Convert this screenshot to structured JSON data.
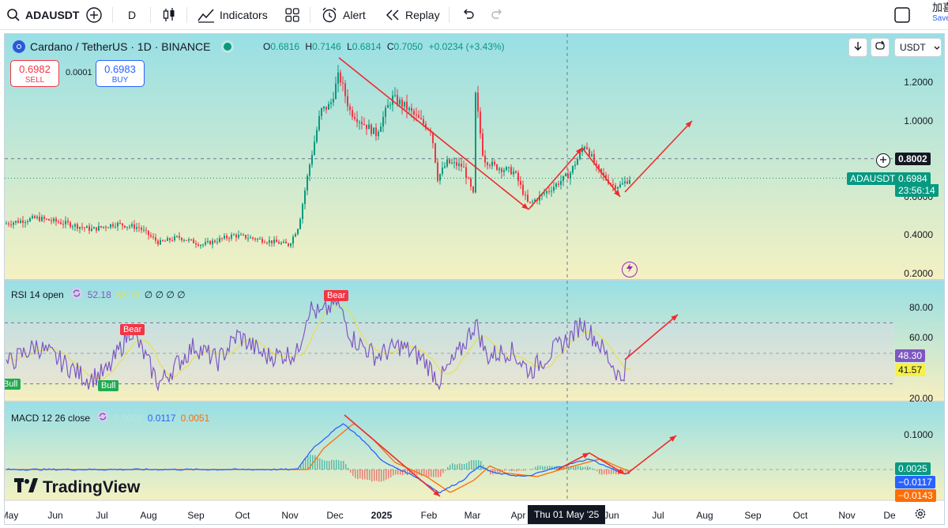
{
  "toolbar": {
    "symbol": "ADAUSDT",
    "interval": "D",
    "indicators_label": "Indicators",
    "alert_label": "Alert",
    "replay_label": "Replay",
    "right_text_top": "加喜",
    "right_text_bottom": "Save"
  },
  "legend": {
    "title": "Cardano / TetherUS · 1D · BINANCE",
    "o_key": "O",
    "o_val": "0.6816",
    "h_key": "H",
    "h_val": "0.7146",
    "l_key": "L",
    "l_val": "0.6814",
    "c_key": "C",
    "c_val": "0.7050",
    "change": "+0.0234 (+3.43%)"
  },
  "trade": {
    "sell_price": "0.6982",
    "sell_label": "SELL",
    "spread": "0.0001",
    "buy_price": "0.6983",
    "buy_label": "BUY"
  },
  "currency_select": "USDT",
  "price_axis": {
    "labels": [
      "1.2000",
      "1.0000",
      "0.6000",
      "0.4000",
      "0.2000"
    ],
    "crosshair_price": "0.8002",
    "symbol_tag": "ADAUSDT",
    "last_price": "0.6984",
    "countdown": "23:56:14"
  },
  "rsi": {
    "title": "RSI 14 open",
    "value1": "52.18",
    "value2": "53.15",
    "extra": "∅ ∅ ∅ ∅",
    "axis_labels": [
      "80.00",
      "60.00",
      "20.00"
    ],
    "tag1": "48.30",
    "tag2": "41.57",
    "badges": [
      "Bear",
      "Bear",
      "Bull",
      "Bull"
    ]
  },
  "macd": {
    "title": "MACD 12 26 close",
    "value_hist": "0.0066",
    "value_macd": "0.0117",
    "value_signal": "0.0051",
    "axis_label": "0.1000",
    "tag1": "0.0025",
    "tag2": "−0.0117",
    "tag3": "−0.0143"
  },
  "time_axis": {
    "labels": [
      "May",
      "Jun",
      "Jul",
      "Aug",
      "Sep",
      "Oct",
      "Nov",
      "Dec",
      "2025",
      "Feb",
      "Mar",
      "Apr",
      "Jun",
      "Jul",
      "Aug",
      "Sep",
      "Oct",
      "Nov",
      "De"
    ],
    "crosshair_date": "Thu 01 May '25"
  },
  "watermark": "TradingView",
  "colors": {
    "up": "#089981",
    "down": "#f23645",
    "rsi_line": "#7e57c2",
    "rsi_ma": "#e8e04a",
    "macd_line": "#2962ff",
    "signal_line": "#ff6d00",
    "arrow": "#ef2b2b"
  }
}
